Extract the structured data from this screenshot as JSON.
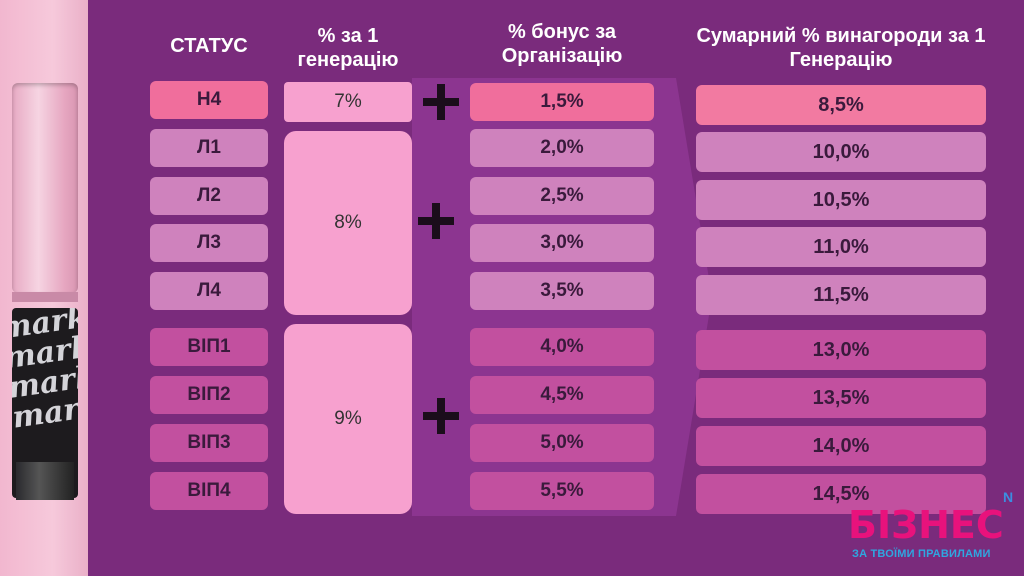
{
  "headers": {
    "status": "СТАТУС",
    "per_gen": "% за 1 генерацію",
    "bonus_org": "% бонус за Організацію",
    "total": "Сумарний % винагороди за 1 Генерацію"
  },
  "rows": [
    {
      "status": "Н4",
      "bonus": "1,5%",
      "total": "8,5%"
    },
    {
      "status": "Л1",
      "bonus": "2,0%",
      "total": "10,0%"
    },
    {
      "status": "Л2",
      "bonus": "2,5%",
      "total": "10,5%"
    },
    {
      "status": "Л3",
      "bonus": "3,0%",
      "total": "11,0%"
    },
    {
      "status": "Л4",
      "bonus": "3,5%",
      "total": "11,5%"
    },
    {
      "status": "ВІП1",
      "bonus": "4,0%",
      "total": "13,0%"
    },
    {
      "status": "ВІП2",
      "bonus": "4,5%",
      "total": "13,5%"
    },
    {
      "status": "ВІП3",
      "bonus": "5,0%",
      "total": "14,0%"
    },
    {
      "status": "ВІП4",
      "bonus": "5,5%",
      "total": "14,5%"
    }
  ],
  "groups": [
    {
      "pct": "7%"
    },
    {
      "pct": "8%"
    },
    {
      "pct": "9%"
    }
  ],
  "product_text": "mark. mark. mark. mark.",
  "logo": {
    "small": "N",
    "big": "БІЗНЕС",
    "tagline": "ЗА ТВОЇМИ ПРАВИЛАМИ"
  },
  "colors": {
    "background": "#7a2b7c",
    "accent_pink": "#f06e9c",
    "light_pink": "#f7a1cf"
  }
}
